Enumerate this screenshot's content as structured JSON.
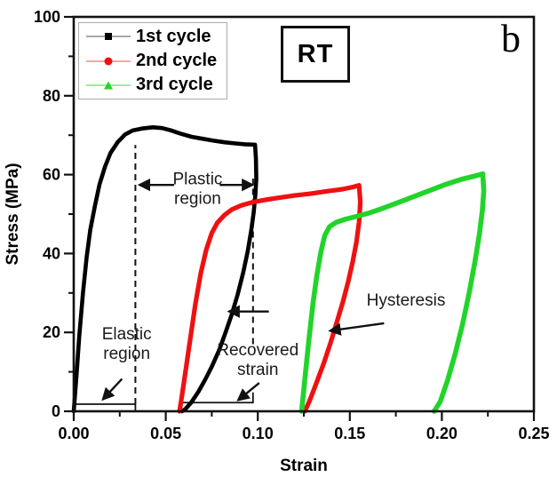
{
  "figure": {
    "corner_label": "b",
    "inset_label": "RT",
    "background": "#ffffff"
  },
  "chart_data": {
    "type": "line",
    "title": "",
    "xlabel": "Strain",
    "ylabel": "Stress (MPa)",
    "xlim": [
      0,
      0.25
    ],
    "ylim": [
      0,
      100
    ],
    "grid": false,
    "x_major_ticks": [
      0,
      0.05,
      0.1,
      0.15,
      0.2,
      0.25
    ],
    "x_tick_labels": [
      "0.00",
      "0.05",
      "0.10",
      "0.15",
      "0.20",
      "0.25"
    ],
    "x_minor_ticks": [
      0.025,
      0.075,
      0.125,
      0.175,
      0.225
    ],
    "y_major_ticks": [
      0,
      20,
      40,
      60,
      80,
      100
    ],
    "y_tick_labels": [
      "0",
      "20",
      "40",
      "60",
      "80",
      "100"
    ],
    "y_minor_ticks": [
      10,
      30,
      50,
      70,
      90
    ],
    "legend": {
      "position": "top-left",
      "entries": [
        {
          "label": "1st cycle",
          "marker": "square",
          "color": "#000000",
          "line_color": "#a8a8a8"
        },
        {
          "label": "2nd cycle",
          "marker": "circle",
          "color": "#ee1111",
          "line_color": "#f4a6a6"
        },
        {
          "label": "3rd cycle",
          "marker": "triangle",
          "color": "#22d42a",
          "line_color": "#9fe9a2"
        }
      ]
    },
    "series": [
      {
        "name": "1st cycle",
        "color": "#000000",
        "width": 4.6,
        "points": [
          [
            0.0,
            0
          ],
          [
            0.0015,
            9
          ],
          [
            0.003,
            19
          ],
          [
            0.005,
            30
          ],
          [
            0.007,
            39
          ],
          [
            0.009,
            46
          ],
          [
            0.0115,
            52
          ],
          [
            0.014,
            57.5
          ],
          [
            0.017,
            62
          ],
          [
            0.02,
            65.5
          ],
          [
            0.024,
            68.3
          ],
          [
            0.028,
            70.2
          ],
          [
            0.032,
            71.2
          ],
          [
            0.037,
            71.7
          ],
          [
            0.043,
            72.0
          ],
          [
            0.048,
            71.8
          ],
          [
            0.053,
            71.2
          ],
          [
            0.058,
            70.4
          ],
          [
            0.064,
            69.6
          ],
          [
            0.07,
            69.1
          ],
          [
            0.076,
            68.6
          ],
          [
            0.082,
            68.2
          ],
          [
            0.088,
            67.9
          ],
          [
            0.093,
            67.7
          ],
          [
            0.0985,
            67.6
          ],
          [
            0.099,
            64
          ],
          [
            0.0992,
            59
          ],
          [
            0.0987,
            55
          ],
          [
            0.0978,
            50.5
          ],
          [
            0.0965,
            46
          ],
          [
            0.0945,
            40.5
          ],
          [
            0.092,
            35
          ],
          [
            0.089,
            29.5
          ],
          [
            0.0858,
            24.5
          ],
          [
            0.0825,
            20
          ],
          [
            0.079,
            15.5
          ],
          [
            0.0752,
            11.5
          ],
          [
            0.0714,
            8
          ],
          [
            0.0675,
            4.8
          ],
          [
            0.0638,
            2.2
          ],
          [
            0.0605,
            0.5
          ],
          [
            0.0588,
            0
          ]
        ]
      },
      {
        "name": "2nd cycle",
        "color": "#ee1111",
        "width": 5.2,
        "points": [
          [
            0.0575,
            0
          ],
          [
            0.059,
            4.5
          ],
          [
            0.061,
            11
          ],
          [
            0.0635,
            19
          ],
          [
            0.066,
            27
          ],
          [
            0.069,
            35
          ],
          [
            0.072,
            41
          ],
          [
            0.075,
            45.2
          ],
          [
            0.078,
            47.8
          ],
          [
            0.082,
            49.8
          ],
          [
            0.086,
            51.2
          ],
          [
            0.091,
            52.2
          ],
          [
            0.097,
            53.0
          ],
          [
            0.104,
            53.6
          ],
          [
            0.112,
            54.2
          ],
          [
            0.12,
            54.7
          ],
          [
            0.129,
            55.2
          ],
          [
            0.138,
            55.8
          ],
          [
            0.146,
            56.3
          ],
          [
            0.152,
            56.9
          ],
          [
            0.155,
            57.3
          ],
          [
            0.1557,
            53
          ],
          [
            0.155,
            48
          ],
          [
            0.1536,
            43
          ],
          [
            0.1516,
            38
          ],
          [
            0.1492,
            33
          ],
          [
            0.1464,
            28
          ],
          [
            0.1432,
            23
          ],
          [
            0.1396,
            17.5
          ],
          [
            0.1357,
            12
          ],
          [
            0.1317,
            7
          ],
          [
            0.128,
            2.5
          ],
          [
            0.1256,
            0
          ]
        ]
      },
      {
        "name": "3rd cycle",
        "color": "#22d42a",
        "width": 5.6,
        "points": [
          [
            0.1238,
            0
          ],
          [
            0.125,
            5.5
          ],
          [
            0.1264,
            12
          ],
          [
            0.1281,
            19.5
          ],
          [
            0.13,
            27.5
          ],
          [
            0.1321,
            34.5
          ],
          [
            0.1343,
            40.5
          ],
          [
            0.1364,
            44.6
          ],
          [
            0.139,
            46.8
          ],
          [
            0.1425,
            47.9
          ],
          [
            0.1475,
            48.7
          ],
          [
            0.1535,
            49.4
          ],
          [
            0.16,
            50.2
          ],
          [
            0.1675,
            51.4
          ],
          [
            0.1755,
            52.8
          ],
          [
            0.1845,
            54.4
          ],
          [
            0.1935,
            56.0
          ],
          [
            0.2025,
            57.6
          ],
          [
            0.2105,
            58.8
          ],
          [
            0.2175,
            59.6
          ],
          [
            0.2222,
            60.2
          ],
          [
            0.2228,
            56
          ],
          [
            0.222,
            51
          ],
          [
            0.2204,
            45
          ],
          [
            0.218,
            38
          ],
          [
            0.2148,
            30
          ],
          [
            0.2112,
            22
          ],
          [
            0.2072,
            14.5
          ],
          [
            0.2032,
            8
          ],
          [
            0.1992,
            2.5
          ],
          [
            0.1958,
            0
          ]
        ]
      }
    ],
    "annotations": {
      "texts": [
        {
          "name": "plastic-region-label",
          "lines": [
            "Plastic",
            "region"
          ],
          "x": 0.0673,
          "y": 57.5
        },
        {
          "name": "elastic-region-label",
          "lines": [
            "Elastic",
            "region"
          ],
          "x": 0.0288,
          "y": 18.2
        },
        {
          "name": "recovered-strain-label",
          "lines": [
            "Recovered",
            "strain"
          ],
          "x": 0.1,
          "y": 14.2
        },
        {
          "name": "hysteresis-label",
          "lines": [
            "Hysteresis"
          ],
          "x": 0.1805,
          "y": 26.8
        }
      ],
      "arrows": [
        {
          "name": "plastic-left-arrow",
          "from": [
            0.0545,
            57.4
          ],
          "to": [
            0.0357,
            57.4
          ]
        },
        {
          "name": "plastic-right-arrow",
          "from": [
            0.0793,
            57.4
          ],
          "to": [
            0.0972,
            57.4
          ]
        },
        {
          "name": "elastic-region-arrow",
          "from": [
            0.0262,
            8.2
          ],
          "to": [
            0.0158,
            3.0
          ]
        },
        {
          "name": "recovered-strain-arrow",
          "from": [
            0.1008,
            7.2
          ],
          "to": [
            0.0893,
            2.8
          ]
        },
        {
          "name": "unloading-arrow",
          "from": [
            0.106,
            25.3
          ],
          "to": [
            0.0843,
            25.3
          ]
        },
        {
          "name": "hysteresis-arrow",
          "from": [
            0.1686,
            22.3
          ],
          "to": [
            0.1392,
            20.4
          ]
        }
      ],
      "dashed_vlines": [
        {
          "name": "elastic-limit-dashed-line",
          "x": 0.0335,
          "y1": 1.8,
          "y2": 67.5
        },
        {
          "name": "plastic-end-dashed-line",
          "x": 0.0974,
          "y1": 17.0,
          "y2": 59.0
        }
      ],
      "brackets": [
        {
          "name": "elastic-region-bracket",
          "x1": 0.0,
          "x2": 0.0335,
          "y": 1.8,
          "tick_dir": "down",
          "tick_len": 1.8
        },
        {
          "name": "recovered-strain-bracket",
          "x1": 0.059,
          "x2": 0.0974,
          "y": 2.2,
          "tick_dir": "up",
          "tick_len": 2.6
        }
      ]
    }
  },
  "colors": {
    "frame": "#111111",
    "annotation_text": "#1a1a1a"
  }
}
